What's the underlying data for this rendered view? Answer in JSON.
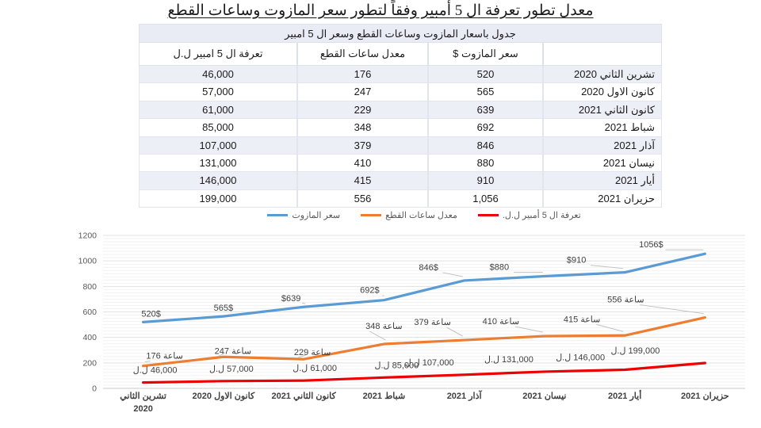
{
  "title": "معدل تطور تعرفة ال 5 أمبير وفقاً لتطور سعر المازوت وساعات القطع",
  "table": {
    "caption": "جدول باسعار المازوت وساعات القطع وسعر ال 5 امبير",
    "columns": [
      {
        "key": "tariff",
        "label": "تعرفة ال 5 امبير ل.ل"
      },
      {
        "key": "hours",
        "label": "معدل ساعات القطع"
      },
      {
        "key": "price",
        "label": "سعر المازوت $"
      },
      {
        "key": "month",
        "label": ""
      }
    ],
    "rows": [
      {
        "month": "تشرين الثاني 2020",
        "price": "520",
        "hours": "176",
        "tariff": "46,000"
      },
      {
        "month": "كانون الاول 2020",
        "price": "565",
        "hours": "247",
        "tariff": "57,000"
      },
      {
        "month": "كانون الثاني 2021",
        "price": "639",
        "hours": "229",
        "tariff": "61,000"
      },
      {
        "month": "شباط 2021",
        "price": "692",
        "hours": "348",
        "tariff": "85,000"
      },
      {
        "month": "آذار 2021",
        "price": "846",
        "hours": "379",
        "tariff": "107,000"
      },
      {
        "month": "نيسان 2021",
        "price": "880",
        "hours": "410",
        "tariff": "131,000"
      },
      {
        "month": "أيار 2021",
        "price": "910",
        "hours": "415",
        "tariff": "146,000"
      },
      {
        "month": "حزيران 2021",
        "price": "1,056",
        "hours": "556",
        "tariff": "199,000"
      }
    ]
  },
  "legend": {
    "items": [
      {
        "label": "سعر المازوت",
        "color": "#5B9BD5"
      },
      {
        "label": "معدل ساعات القطع",
        "color": "#ED7D31"
      },
      {
        "label": "تعرفة ال 5 أمبير ل.ل.",
        "color": "#EE0000"
      }
    ]
  },
  "chart_data": {
    "type": "line",
    "title": "",
    "xlabel": "",
    "ylabel": "",
    "categories": [
      "تشرين الثاني\n2020",
      "كانون الاول 2020",
      "كانون الثاني 2021",
      "شباط 2021",
      "آذار 2021",
      "نيسان 2021",
      "أيار 2021",
      "حزيران 2021"
    ],
    "ylim": [
      0,
      1200
    ],
    "y_major": 200,
    "y_minor": 25,
    "grid": true,
    "legend_position": "top-center",
    "series": [
      {
        "name": "سعر المازوت",
        "color": "#5B9BD5",
        "values": [
          520,
          565,
          639,
          692,
          846,
          880,
          910,
          1056
        ],
        "labels": [
          "520$",
          "565$",
          "$639",
          "692$",
          "846$",
          "$880",
          "$910",
          "1056$"
        ],
        "label_dir": "ltr",
        "label_dx": [
          10,
          0,
          -16,
          -18,
          -45,
          -57,
          -61,
          -68
        ],
        "label_dy": [
          -7,
          -7,
          -7,
          -9,
          -13,
          -8,
          -12,
          -8
        ],
        "leaders": "neg"
      },
      {
        "name": "معدل ساعات القطع",
        "color": "#ED7D31",
        "values": [
          176,
          247,
          229,
          348,
          379,
          410,
          415,
          556
        ],
        "labels": [
          "176 ساعة",
          "247 ساعة",
          "229 ساعة",
          "348 ساعة",
          "379 ساعة",
          "410 ساعة",
          "415 ساعة",
          "556 ساعة"
        ],
        "label_dir": "ltr",
        "label_dx": [
          27,
          12,
          11,
          0,
          -40,
          -55,
          -54,
          -100
        ],
        "label_dy": [
          -9,
          -4,
          -5,
          -19,
          -19,
          -15,
          -17,
          -19
        ],
        "leaders": "all"
      },
      {
        "name": "تعرفة ال 5 أمبير ل.ل.",
        "color": "#EE0000",
        "plot_divisor": 1000,
        "values": [
          46000,
          57000,
          61000,
          85000,
          107000,
          131000,
          146000,
          199000
        ],
        "labels": [
          "46,000 ل.ل",
          "57,000 ل.ل",
          "61,000 ل.ل",
          "85,000 ل.ل",
          "107,000 ل.ل",
          "131,000 ل.ل",
          "146,000 ل.ل",
          "199,000 ل.ل"
        ],
        "label_dir": "rtl",
        "label_dx": [
          15,
          10,
          14,
          16,
          -44,
          -45,
          -56,
          -88
        ],
        "label_dy": [
          -12,
          -12,
          -12,
          -12,
          -12,
          -12,
          -12,
          -12
        ],
        "leaders": "none"
      }
    ]
  }
}
